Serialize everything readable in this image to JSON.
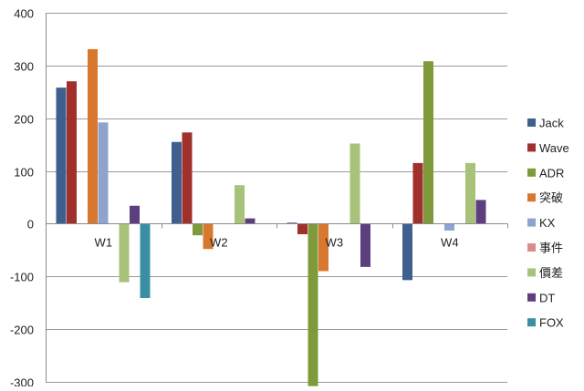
{
  "chart_data": {
    "type": "bar",
    "categories": [
      "W1",
      "W2",
      "W3",
      "W4"
    ],
    "ylim": [
      -300,
      400
    ],
    "yticks": [
      -300,
      -200,
      -100,
      0,
      100,
      200,
      300,
      400
    ],
    "grid": true,
    "legend_position": "right",
    "series": [
      {
        "name": "Jack",
        "color": "#3f5f8f",
        "values": [
          258,
          155,
          2,
          -107
        ]
      },
      {
        "name": "Wave",
        "color": "#a0302c",
        "values": [
          270,
          173,
          -20,
          115
        ]
      },
      {
        "name": "ADR",
        "color": "#7e9a3a",
        "values": [
          null,
          -22,
          -308,
          308
        ]
      },
      {
        "name": "突破",
        "color": "#d8782e",
        "values": [
          331,
          -48,
          -90,
          null
        ]
      },
      {
        "name": "KX",
        "color": "#8fa3cf",
        "values": [
          192,
          null,
          null,
          -13
        ]
      },
      {
        "name": "事件",
        "color": "#d98c8a",
        "values": [
          null,
          null,
          null,
          null
        ]
      },
      {
        "name": "價差",
        "color": "#a9c27a",
        "values": [
          -111,
          73,
          152,
          115
        ]
      },
      {
        "name": "DT",
        "color": "#5d3f7f",
        "values": [
          34,
          10,
          -82,
          45
        ]
      },
      {
        "name": "FOX",
        "color": "#3a8fa3",
        "values": [
          -141,
          null,
          null,
          null
        ]
      }
    ]
  }
}
